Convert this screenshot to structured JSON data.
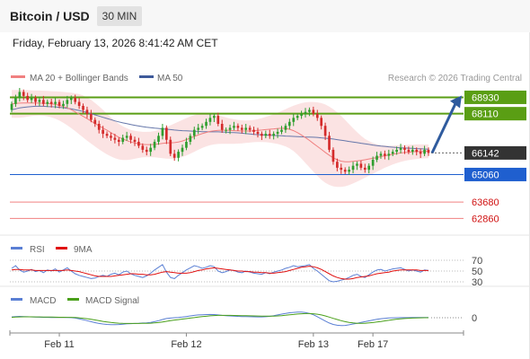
{
  "header": {
    "title": "Bitcoin / USD",
    "timeframe": "30 MIN"
  },
  "datetime": "Friday, February 13, 2026 8:41:42 AM CET",
  "legend": {
    "bollinger": "MA 20 + Bollinger Bands",
    "ma50": "MA 50"
  },
  "credit": "Research © 2026 Trading Central",
  "colors": {
    "resistance": "#5a9e14",
    "support": "#1f5fcf",
    "target": "#f08080",
    "ma20": "#f08080",
    "ma50": "#6677aa",
    "bollinger_fill": "#fbe3e3",
    "candle_up": "#2e9e2e",
    "candle_down": "#d42b2b",
    "arrow": "#2f5b9e",
    "rsi": "#5a7fd4",
    "rsi_ma": "#e01010",
    "macd": "#5a7fd4",
    "macd_signal": "#4aa01a",
    "current": "#333333"
  },
  "chart_data": [
    {
      "type": "candlestick",
      "panel": "price",
      "ylim": [
        62200,
        69400
      ],
      "x_ticks": [
        "Feb 11",
        "Feb 12",
        "Feb 13",
        "Feb 17"
      ],
      "levels": [
        {
          "value": 68930,
          "label": "68930",
          "kind": "resistance"
        },
        {
          "value": 68110,
          "label": "68110",
          "kind": "resistance"
        },
        {
          "value": 66142,
          "label": "66142",
          "kind": "current"
        },
        {
          "value": 65060,
          "label": "65060",
          "kind": "support"
        },
        {
          "value": 63680,
          "label": "63680",
          "kind": "target"
        },
        {
          "value": 62860,
          "label": "62860",
          "kind": "target"
        }
      ],
      "closes": [
        68600,
        68900,
        69200,
        69000,
        68800,
        68900,
        68700,
        68800,
        68600,
        68700,
        68600,
        68700,
        68500,
        68600,
        68800,
        68900,
        68700,
        68500,
        68300,
        68100,
        67800,
        67600,
        67300,
        67100,
        67000,
        66900,
        66800,
        66700,
        66900,
        67000,
        66800,
        66700,
        66500,
        66300,
        66200,
        66400,
        66700,
        67000,
        67400,
        66800,
        66100,
        65900,
        66200,
        66400,
        66700,
        67000,
        67300,
        67400,
        67500,
        67700,
        67900,
        68000,
        67600,
        67300,
        67300,
        67400,
        67500,
        67400,
        67300,
        67400,
        67300,
        67200,
        67100,
        67000,
        67100,
        67000,
        67100,
        67200,
        67300,
        67500,
        67700,
        67900,
        68000,
        68100,
        68200,
        68300,
        68100,
        67900,
        67500,
        67000,
        66300,
        65700,
        65400,
        65300,
        65200,
        65300,
        65500,
        65600,
        65400,
        65300,
        65500,
        65800,
        66000,
        66100,
        66000,
        66100,
        66200,
        66300,
        66400,
        66300,
        66200,
        66300,
        66200,
        66100,
        66300,
        66142
      ],
      "ma20": [
        68600,
        68620,
        68640,
        68650,
        68650,
        68650,
        68640,
        68640,
        68630,
        68620,
        68600,
        68570,
        68530,
        68470,
        68400,
        68310,
        68200,
        68090,
        67980,
        67860,
        67740,
        67620,
        67500,
        67390,
        67280,
        67160,
        67040,
        66930,
        66840,
        66760,
        66690,
        66640,
        66600,
        66570,
        66560,
        66560,
        66570,
        66590,
        66620,
        66640,
        66650,
        66660,
        66690,
        66740,
        66810,
        66890,
        66970,
        67040,
        67110,
        67170,
        67220,
        67250,
        67270,
        67280,
        67280,
        67270,
        67260,
        67250,
        67240,
        67240,
        67240,
        67250,
        67270,
        67290,
        67310,
        67330,
        67350,
        67370,
        67380,
        67370,
        67330,
        67260,
        67160,
        67040,
        66910,
        66770,
        66620,
        66470,
        66320,
        66170,
        66030,
        65900,
        65800,
        65730,
        65700,
        65700,
        65720,
        65740,
        65770,
        65800,
        65840,
        65870,
        65910,
        65960,
        66000,
        66040,
        66080,
        66110,
        66140,
        66160,
        66180,
        66200,
        66210,
        66220,
        66220,
        66230
      ],
      "bollinger_upper": [
        69300,
        69300,
        69300,
        69300,
        69290,
        69280,
        69270,
        69270,
        69260,
        69250,
        69240,
        69230,
        69220,
        69200,
        69180,
        69160,
        69130,
        69090,
        69020,
        68920,
        68800,
        68650,
        68480,
        68300,
        68100,
        67920,
        67750,
        67600,
        67480,
        67380,
        67300,
        67250,
        67220,
        67200,
        67200,
        67210,
        67240,
        67290,
        67360,
        67440,
        67530,
        67620,
        67710,
        67800,
        67890,
        67970,
        68040,
        68090,
        68120,
        68130,
        68120,
        68090,
        68040,
        67980,
        67920,
        67870,
        67830,
        67800,
        67780,
        67770,
        67780,
        67800,
        67840,
        67890,
        67950,
        68010,
        68080,
        68160,
        68250,
        68340,
        68430,
        68510,
        68580,
        68640,
        68680,
        68700,
        68700,
        68680,
        68640,
        68570,
        68470,
        68340,
        68180,
        68000,
        67800,
        67590,
        67380,
        67180,
        67000,
        66850,
        66730,
        66640,
        66580,
        66540,
        66520,
        66510,
        66510,
        66520,
        66530,
        66540,
        66550,
        66560,
        66570,
        66570,
        66570,
        66570
      ],
      "bollinger_lower": [
        67900,
        67900,
        67910,
        67930,
        67960,
        67990,
        68010,
        68020,
        68010,
        67980,
        67930,
        67860,
        67770,
        67660,
        67530,
        67390,
        67240,
        67080,
        66920,
        66760,
        66610,
        66460,
        66320,
        66190,
        66070,
        65970,
        65880,
        65820,
        65790,
        65790,
        65810,
        65850,
        65890,
        65920,
        65930,
        65930,
        65920,
        65900,
        65880,
        65860,
        65850,
        65860,
        65890,
        65940,
        66010,
        66100,
        66200,
        66300,
        66390,
        66470,
        66530,
        66570,
        66590,
        66600,
        66600,
        66600,
        66600,
        66610,
        66620,
        66640,
        66660,
        66680,
        66690,
        66690,
        66680,
        66660,
        66630,
        66590,
        66540,
        66470,
        66370,
        66230,
        66060,
        65860,
        65640,
        65420,
        65200,
        64990,
        64800,
        64650,
        64540,
        64470,
        64440,
        64440,
        64470,
        64530,
        64610,
        64700,
        64800,
        64900,
        65000,
        65100,
        65200,
        65300,
        65400,
        65480,
        65560,
        65630,
        65690,
        65740,
        65780,
        65810,
        65840,
        65860,
        65870,
        65880
      ],
      "ma50": [
        68300,
        68350,
        68400,
        68430,
        68450,
        68470,
        68480,
        68480,
        68480,
        68470,
        68460,
        68450,
        68430,
        68410,
        68380,
        68350,
        68310,
        68270,
        68220,
        68170,
        68110,
        68050,
        67990,
        67930,
        67870,
        67810,
        67750,
        67700,
        67650,
        67610,
        67570,
        67530,
        67490,
        67460,
        67430,
        67410,
        67390,
        67370,
        67350,
        67330,
        67310,
        67290,
        67270,
        67260,
        67250,
        67240,
        67230,
        67220,
        67210,
        67210,
        67200,
        67200,
        67200,
        67190,
        67180,
        67170,
        67160,
        67150,
        67130,
        67110,
        67090,
        67070,
        67060,
        67050,
        67040,
        67030,
        67020,
        67010,
        67000,
        66990,
        66980,
        66970,
        66960,
        66950,
        66940,
        66940,
        66930,
        66920,
        66900,
        66880,
        66860,
        66840,
        66810,
        66780,
        66750,
        66720,
        66690,
        66660,
        66630,
        66600,
        66570,
        66540,
        66510,
        66490,
        66470,
        66450,
        66430,
        66410,
        66400,
        66390,
        66380,
        66370,
        66360,
        66350,
        66340,
        66330
      ],
      "forecast_arrow": {
        "from": 66142,
        "to": 68930
      }
    },
    {
      "type": "line",
      "panel": "rsi",
      "legend": [
        "RSI",
        "9MA"
      ],
      "ylim": [
        25,
        75
      ],
      "ticks": [
        70,
        50,
        30
      ],
      "series": [
        {
          "name": "RSI",
          "values": [
            55,
            60,
            52,
            48,
            50,
            53,
            49,
            51,
            47,
            52,
            50,
            54,
            48,
            52,
            56,
            50,
            45,
            42,
            40,
            38,
            36,
            37,
            40,
            42,
            40,
            44,
            46,
            43,
            48,
            50,
            45,
            42,
            40,
            38,
            41,
            46,
            52,
            57,
            62,
            48,
            38,
            36,
            42,
            47,
            52,
            56,
            60,
            58,
            55,
            57,
            60,
            58,
            50,
            47,
            49,
            52,
            51,
            48,
            47,
            50,
            48,
            46,
            45,
            44,
            47,
            45,
            48,
            50,
            52,
            55,
            57,
            60,
            58,
            59,
            60,
            62,
            55,
            50,
            44,
            38,
            32,
            30,
            31,
            33,
            35,
            38,
            42,
            44,
            40,
            38,
            43,
            48,
            52,
            53,
            50,
            52,
            54,
            55,
            56,
            53,
            50,
            52,
            50,
            48,
            52,
            51
          ]
        },
        {
          "name": "9MA",
          "values": [
            52,
            53,
            53,
            52,
            52,
            52,
            51,
            51,
            51,
            51,
            51,
            51,
            51,
            51,
            52,
            51,
            50,
            49,
            47,
            45,
            43,
            41,
            40,
            40,
            40,
            40,
            41,
            42,
            43,
            44,
            45,
            45,
            44,
            44,
            43,
            43,
            44,
            46,
            48,
            49,
            48,
            47,
            46,
            46,
            46,
            47,
            49,
            51,
            52,
            54,
            55,
            56,
            55,
            54,
            53,
            52,
            51,
            50,
            50,
            49,
            49,
            48,
            48,
            47,
            47,
            46,
            46,
            47,
            48,
            49,
            51,
            53,
            55,
            57,
            58,
            59,
            58,
            56,
            53,
            49,
            45,
            41,
            38,
            36,
            35,
            35,
            36,
            38,
            39,
            40,
            41,
            43,
            45,
            46,
            47,
            48,
            50,
            51,
            52,
            52,
            52,
            52,
            52,
            51,
            51,
            51
          ]
        }
      ]
    },
    {
      "type": "line",
      "panel": "macd",
      "legend": [
        "MACD",
        "MACD Signal"
      ],
      "ylim": [
        -500,
        500
      ],
      "ticks": [
        0
      ],
      "series": [
        {
          "name": "MACD",
          "values": [
            40,
            60,
            70,
            60,
            50,
            40,
            30,
            25,
            20,
            20,
            15,
            15,
            10,
            10,
            10,
            5,
            -20,
            -60,
            -100,
            -150,
            -200,
            -250,
            -290,
            -320,
            -340,
            -350,
            -350,
            -345,
            -330,
            -310,
            -300,
            -290,
            -280,
            -270,
            -260,
            -240,
            -200,
            -150,
            -90,
            -40,
            -20,
            0,
            10,
            30,
            60,
            90,
            120,
            140,
            150,
            160,
            165,
            160,
            140,
            120,
            100,
            90,
            80,
            70,
            60,
            55,
            50,
            45,
            40,
            40,
            50,
            70,
            100,
            140,
            180,
            220,
            250,
            270,
            280,
            280,
            260,
            220,
            150,
            50,
            -60,
            -170,
            -270,
            -340,
            -380,
            -400,
            -390,
            -360,
            -320,
            -280,
            -240,
            -200,
            -160,
            -120,
            -80,
            -50,
            -30,
            -15,
            -5,
            0,
            5,
            5,
            5,
            8,
            10,
            10,
            10,
            10
          ]
        },
        {
          "name": "MACD Signal",
          "values": [
            20,
            30,
            40,
            45,
            45,
            45,
            42,
            40,
            37,
            34,
            30,
            27,
            24,
            22,
            20,
            17,
            10,
            -5,
            -25,
            -50,
            -80,
            -115,
            -150,
            -185,
            -215,
            -240,
            -260,
            -275,
            -285,
            -290,
            -292,
            -292,
            -290,
            -287,
            -283,
            -278,
            -265,
            -245,
            -215,
            -180,
            -150,
            -120,
            -95,
            -70,
            -45,
            -20,
            5,
            30,
            55,
            75,
            95,
            110,
            118,
            120,
            120,
            118,
            115,
            110,
            105,
            100,
            95,
            90,
            85,
            80,
            78,
            78,
            82,
            90,
            105,
            125,
            145,
            165,
            185,
            200,
            210,
            210,
            200,
            175,
            140,
            90,
            30,
            -30,
            -90,
            -150,
            -200,
            -240,
            -265,
            -280,
            -285,
            -280,
            -265,
            -245,
            -220,
            -190,
            -160,
            -130,
            -100,
            -75,
            -55,
            -40,
            -28,
            -18,
            -12,
            -6,
            -2,
            0
          ]
        }
      ]
    }
  ]
}
